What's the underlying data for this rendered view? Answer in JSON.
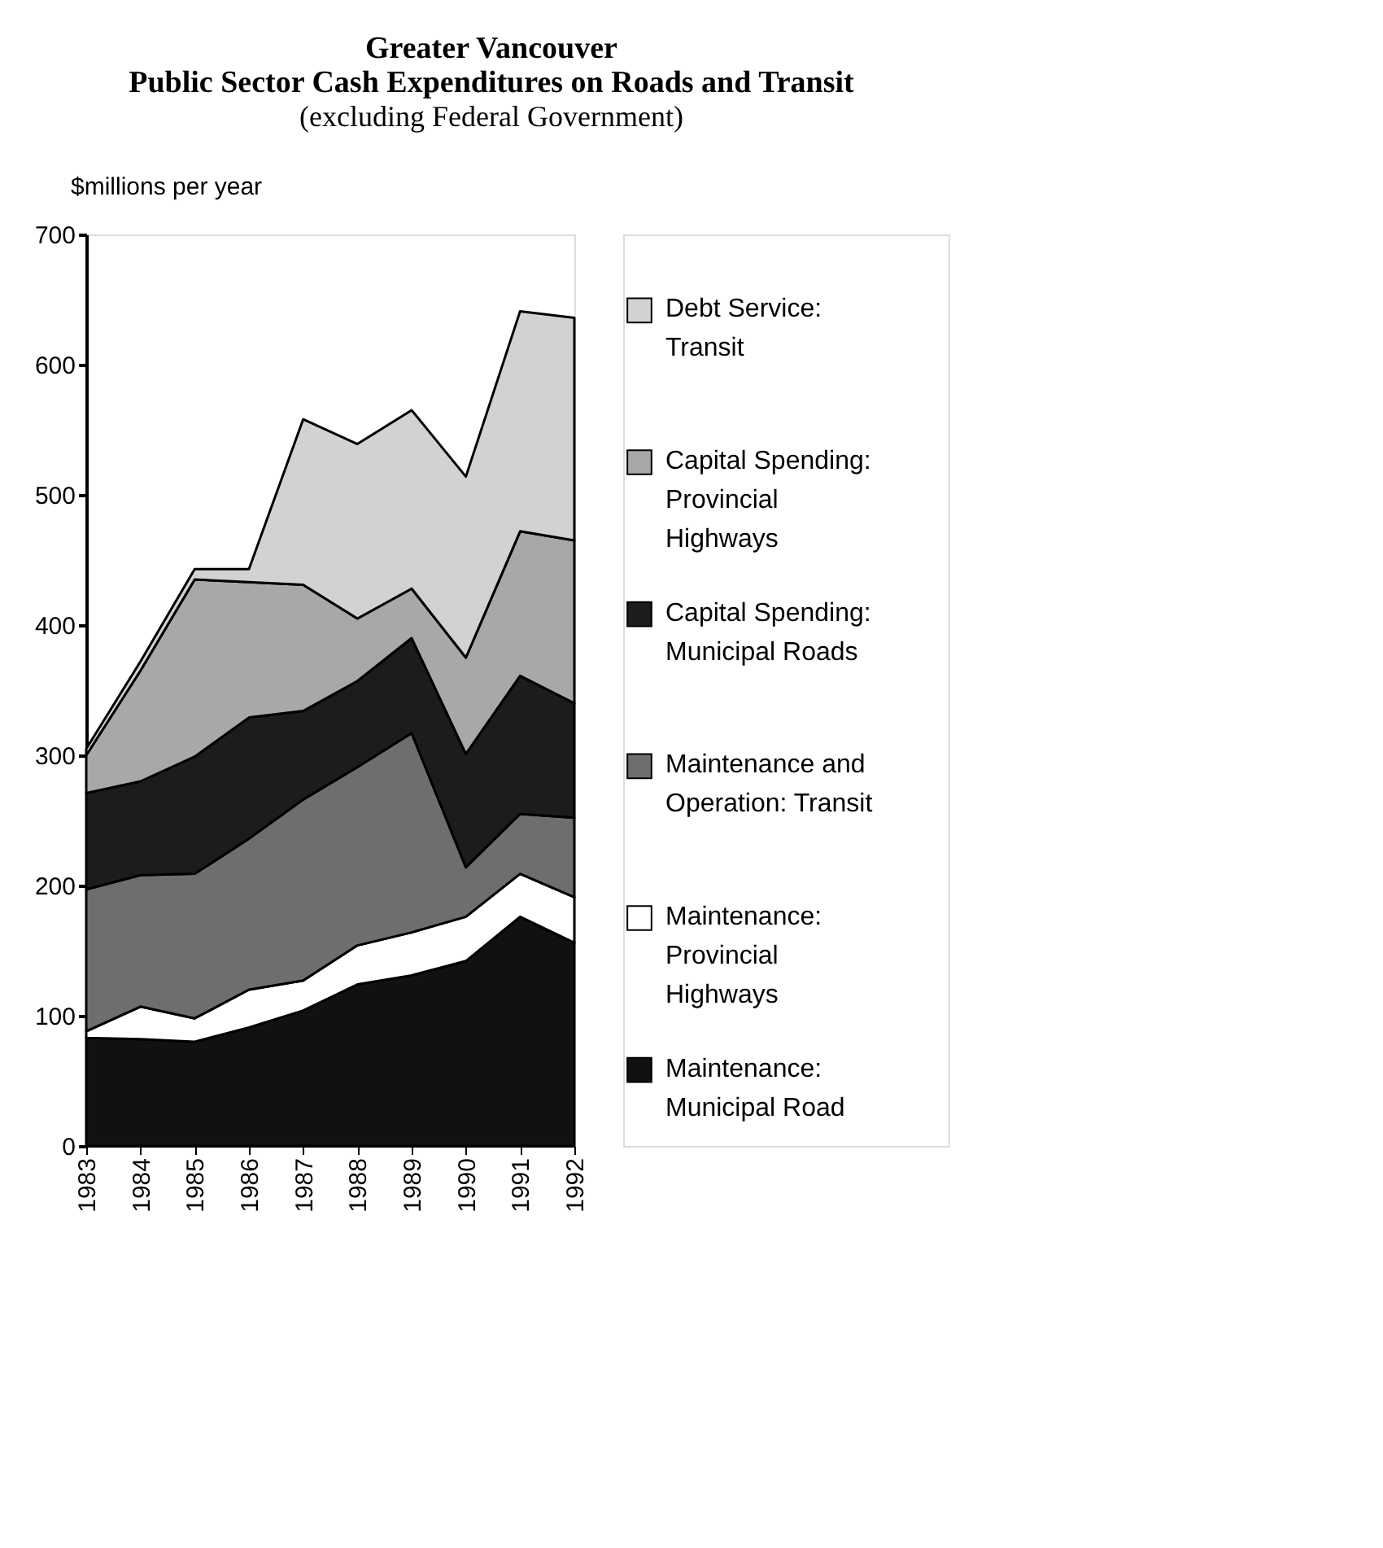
{
  "chart_data": {
    "type": "area",
    "stacked": true,
    "title": [
      "Greater Vancouver",
      "Public Sector Cash Expenditures on Roads and Transit"
    ],
    "subtitle": "(excluding Federal Government)",
    "ylabel": "$millions per year",
    "categories": [
      "1983",
      "1984",
      "1985",
      "1986",
      "1987",
      "1988",
      "1989",
      "1990",
      "1991",
      "1992"
    ],
    "series": [
      {
        "name": "Maintenance: Municipal Road",
        "color": "#111111",
        "values": [
          83,
          82,
          80,
          91,
          104,
          124,
          131,
          142,
          176,
          156
        ]
      },
      {
        "name": "Maintenance: Provincial Highways",
        "color": "#ffffff",
        "values": [
          5,
          25,
          18,
          29,
          23,
          30,
          33,
          34,
          33,
          35
        ]
      },
      {
        "name": "Maintenance and Operation: Transit",
        "color": "#6e6e6e",
        "values": [
          109,
          101,
          111,
          116,
          139,
          137,
          153,
          38,
          46,
          61
        ]
      },
      {
        "name": "Capital Spending: Municipal Roads",
        "color": "#1c1c1c",
        "values": [
          74,
          72,
          90,
          93,
          68,
          66,
          73,
          87,
          106,
          88
        ]
      },
      {
        "name": "Capital Spending: Provincial Highways",
        "color": "#a8a8a8",
        "values": [
          29,
          85,
          136,
          104,
          97,
          48,
          38,
          74,
          111,
          125
        ]
      },
      {
        "name": "Debt Service: Transit",
        "color": "#d2d2d2",
        "values": [
          5,
          7,
          8,
          10,
          127,
          134,
          137,
          139,
          169,
          171
        ]
      }
    ],
    "ylim": [
      0,
      700
    ],
    "yticks": [
      0,
      100,
      200,
      300,
      400,
      500,
      600,
      700
    ],
    "grid": false,
    "legend": "right"
  }
}
